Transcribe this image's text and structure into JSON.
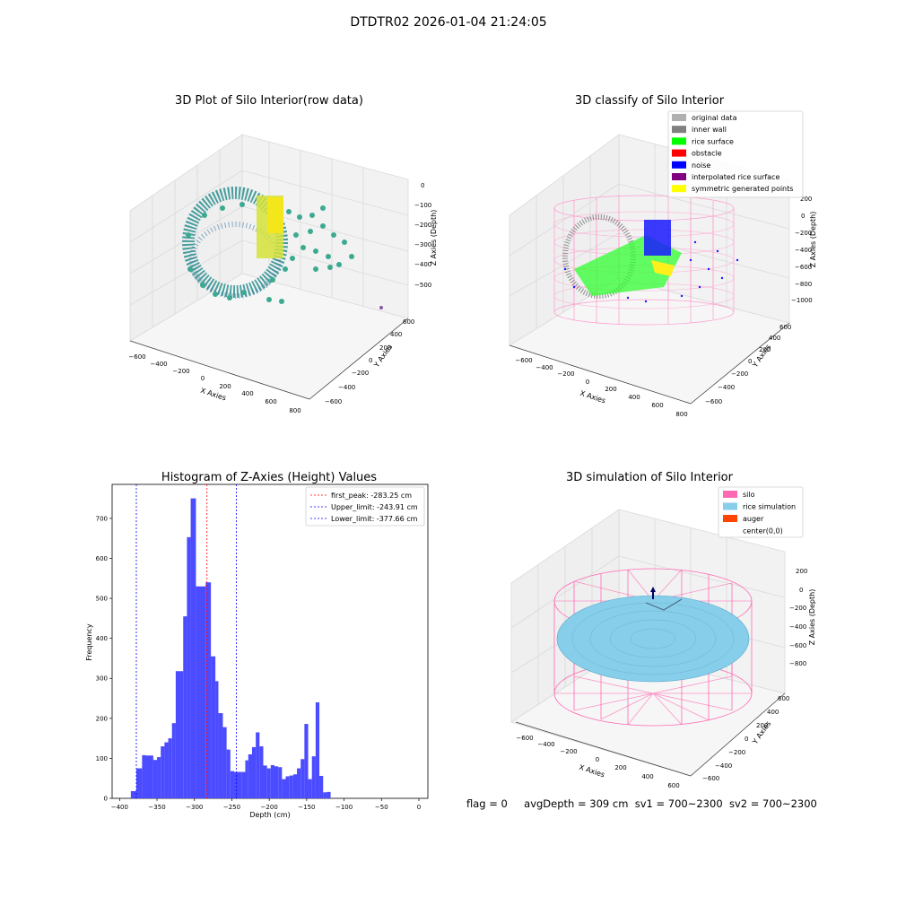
{
  "figure": {
    "suptitle": "DTDTR02 2026-01-04 21:24:05",
    "footer": {
      "flag": "flag = 0",
      "avg_depth": "avgDepth = 309 cm",
      "sv1": "sv1 = 700~2300",
      "sv2": "sv2 = 700~2300"
    }
  },
  "panels": {
    "raw": {
      "title": "3D Plot of Silo Interior(row data)",
      "xlabel": "X Axies",
      "ylabel": "Y Axies",
      "zlabel": "Z Axies (Depth)",
      "x_ticks": [
        "−600",
        "−400",
        "−200",
        "0",
        "200",
        "400",
        "600",
        "800"
      ],
      "y_ticks": [
        "−600",
        "−400",
        "−200",
        "0",
        "200",
        "400",
        "600"
      ],
      "z_ticks": [
        "0",
        "−100",
        "−200",
        "−300",
        "−400",
        "−500"
      ]
    },
    "classify": {
      "title": "3D classify of Silo Interior",
      "xlabel": "X Axies",
      "ylabel": "Y Axies",
      "zlabel": "Z Axies (Depth)",
      "x_ticks": [
        "−600",
        "−400",
        "−200",
        "0",
        "200",
        "400",
        "600",
        "800"
      ],
      "y_ticks": [
        "−600",
        "−400",
        "−200",
        "0",
        "200",
        "400",
        "600"
      ],
      "z_ticks": [
        "200",
        "0",
        "−200",
        "−400",
        "−600",
        "−800",
        "−1000"
      ],
      "legend": [
        {
          "label": "original data",
          "color": "#b0b0b0"
        },
        {
          "label": "inner wall",
          "color": "#808080"
        },
        {
          "label": "rice surface",
          "color": "#00ff00"
        },
        {
          "label": "obstacle",
          "color": "#ff0000"
        },
        {
          "label": "noise",
          "color": "#0000ff"
        },
        {
          "label": "interpolated rice surface",
          "color": "#800080"
        },
        {
          "label": "symmetric generated points",
          "color": "#ffff00"
        }
      ]
    },
    "simulation": {
      "title": "3D simulation of Silo Interior",
      "xlabel": "X Axies",
      "ylabel": "Y Axies",
      "zlabel": "Z Axies (Depth)",
      "x_ticks": [
        "−600",
        "−400",
        "−200",
        "0",
        "200",
        "400",
        "600"
      ],
      "y_ticks": [
        "−600",
        "−400",
        "−200",
        "0",
        "200",
        "400",
        "600"
      ],
      "z_ticks": [
        "200",
        "0",
        "−200",
        "−400",
        "−600",
        "−800"
      ],
      "legend": [
        {
          "label": "silo",
          "color": "#ff69b4"
        },
        {
          "label": "rice simulation",
          "color": "#87ceeb"
        },
        {
          "label": "auger",
          "color": "#ff4500"
        },
        {
          "label": "center(0,0)",
          "color": "#ffffff"
        }
      ]
    }
  },
  "chart_data": {
    "type": "bar",
    "title": "Histogram of Z-Axies (Height) Values",
    "xlabel": "Depth (cm)",
    "ylabel": "Frequency",
    "xlim": [
      -410,
      12
    ],
    "ylim": [
      0,
      785
    ],
    "x_ticks": [
      -400,
      -350,
      -300,
      -250,
      -200,
      -150,
      -100,
      -50,
      0
    ],
    "y_ticks": [
      0,
      100,
      200,
      300,
      400,
      500,
      600,
      700
    ],
    "bar_color": "#4b4bff",
    "bins": [
      [
        -385,
        -377.6,
        18
      ],
      [
        -377.6,
        -370,
        75
      ],
      [
        -370,
        -365,
        108
      ],
      [
        -365,
        -355,
        107
      ],
      [
        -355,
        -350,
        96
      ],
      [
        -350,
        -345,
        103
      ],
      [
        -345,
        -340,
        130
      ],
      [
        -340,
        -335,
        140
      ],
      [
        -335,
        -330,
        150
      ],
      [
        -330,
        -325,
        188
      ],
      [
        -325,
        -315,
        318
      ],
      [
        -315,
        -310,
        455
      ],
      [
        -310,
        -305,
        653
      ],
      [
        -305,
        -298,
        750
      ],
      [
        -298,
        -285,
        530
      ],
      [
        -285,
        -278,
        540
      ],
      [
        -278,
        -272,
        355
      ],
      [
        -272,
        -268,
        293
      ],
      [
        -268,
        -262,
        213
      ],
      [
        -262,
        -257,
        178
      ],
      [
        -257,
        -252,
        122
      ],
      [
        -252,
        -247,
        68
      ],
      [
        -247,
        -237,
        66
      ],
      [
        -237,
        -232,
        66
      ],
      [
        -232,
        -228,
        95
      ],
      [
        -228,
        -223,
        110
      ],
      [
        -223,
        -218,
        128
      ],
      [
        -218,
        -213,
        165
      ],
      [
        -213,
        -208,
        130
      ],
      [
        -208,
        -203,
        82
      ],
      [
        -203,
        -198,
        75
      ],
      [
        -198,
        -193,
        83
      ],
      [
        -193,
        -188,
        80
      ],
      [
        -188,
        -183,
        78
      ],
      [
        -183,
        -178,
        48
      ],
      [
        -178,
        -173,
        55
      ],
      [
        -173,
        -168,
        57
      ],
      [
        -168,
        -163,
        60
      ],
      [
        -163,
        -158,
        75
      ],
      [
        -158,
        -153,
        98
      ],
      [
        -153,
        -148,
        186
      ],
      [
        -148,
        -143,
        48
      ],
      [
        -143,
        -138,
        105
      ],
      [
        -138,
        -133,
        240
      ],
      [
        -133,
        -128,
        56
      ],
      [
        -128,
        -123,
        15
      ],
      [
        -123,
        -118,
        16
      ]
    ],
    "vlines": [
      {
        "label": "first_peak: -283.25 cm",
        "x": -283.25,
        "color": "#ff0000"
      },
      {
        "label": "Upper_limit: -243.91 cm",
        "x": -243.91,
        "color": "#0000ff"
      },
      {
        "label": "Lower_limit: -377.66 cm",
        "x": -377.66,
        "color": "#0000ff"
      }
    ]
  }
}
